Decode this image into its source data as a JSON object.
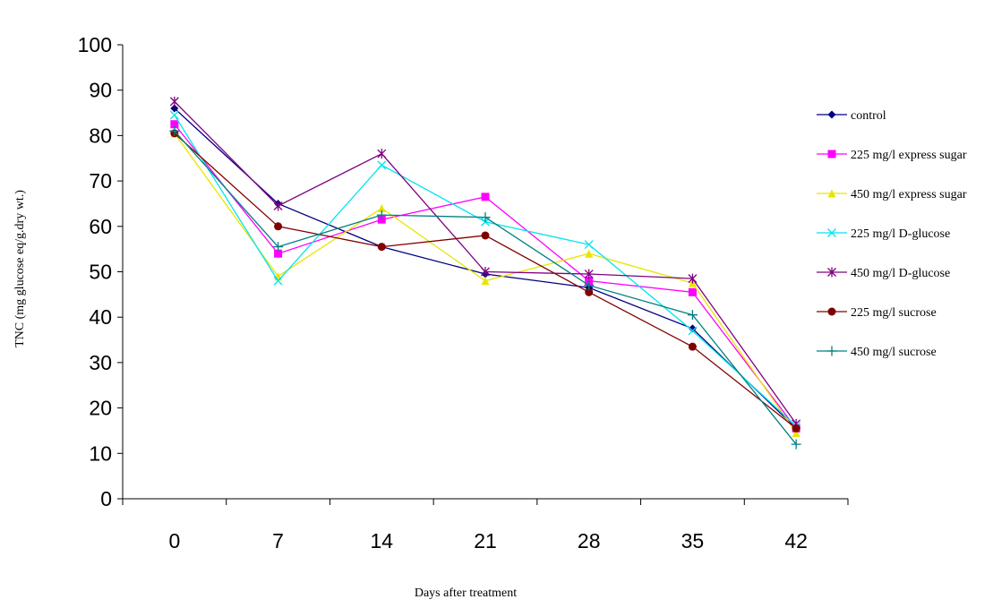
{
  "chart_data": {
    "type": "line",
    "x_label": "Days after treatment",
    "y_label": "TNC (mg glucose eq/g.dry wt.)",
    "categories": [
      "0",
      "7",
      "14",
      "21",
      "28",
      "35",
      "42"
    ],
    "ylim": [
      0,
      100
    ],
    "yticks": [
      0,
      10,
      20,
      30,
      40,
      50,
      60,
      70,
      80,
      90,
      100
    ],
    "series": [
      {
        "name": "control",
        "color": "#000080",
        "marker": "diamond",
        "values": [
          86,
          65,
          55.5,
          49.5,
          46.5,
          37.5,
          15.5
        ]
      },
      {
        "name": "225 mg/l express sugar",
        "color": "#ff00ff",
        "marker": "square",
        "values": [
          82.5,
          54,
          61.5,
          66.5,
          48,
          45.5,
          15.5
        ]
      },
      {
        "name": "450 mg/l express sugar",
        "color": "#e6e600",
        "marker": "triangle",
        "values": [
          80.5,
          49,
          64,
          48,
          54,
          47.5,
          14.5
        ]
      },
      {
        "name": "225 mg/l D-glucose",
        "color": "#00e5ee",
        "marker": "x",
        "values": [
          84.5,
          48,
          73.5,
          61,
          56,
          37,
          16
        ]
      },
      {
        "name": "450 mg/l D-glucose",
        "color": "#800080",
        "marker": "asterisk",
        "values": [
          87.5,
          64.5,
          76,
          50,
          49.5,
          48.5,
          16.5
        ]
      },
      {
        "name": "225 mg/l sucrose",
        "color": "#800000",
        "marker": "circle",
        "values": [
          80.5,
          60,
          55.5,
          58,
          45.5,
          33.5,
          15.5
        ]
      },
      {
        "name": "450 mg/l sucrose",
        "color": "#008080",
        "marker": "plus",
        "values": [
          81,
          55.5,
          62.5,
          62,
          47,
          40.5,
          12
        ]
      }
    ]
  }
}
